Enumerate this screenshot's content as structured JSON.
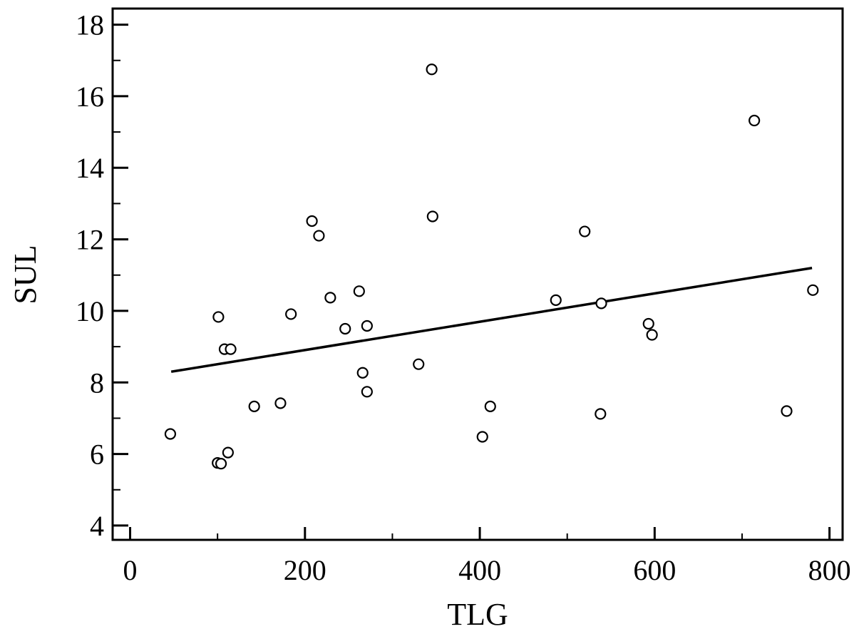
{
  "chart_data": {
    "type": "scatter",
    "xlabel": "TLG",
    "ylabel": "SUL",
    "xlim": [
      -20,
      815
    ],
    "ylim": [
      3.6,
      18.45
    ],
    "x_major_ticks": [
      0,
      200,
      400,
      600,
      800
    ],
    "x_minor_ticks": [
      100,
      300,
      500,
      700
    ],
    "y_major_ticks": [
      4,
      6,
      8,
      10,
      12,
      14,
      16,
      18
    ],
    "y_minor_ticks": [
      5,
      7,
      9,
      11,
      13,
      15,
      17
    ],
    "x_tick_labels": [
      "0",
      "200",
      "400",
      "600",
      "800"
    ],
    "y_tick_labels": [
      "4",
      "6",
      "8",
      "10",
      "12",
      "14",
      "16",
      "18"
    ],
    "grid": false,
    "legend": "none",
    "marker": "open-circle",
    "series": [
      {
        "points": [
          [
            46,
            6.56
          ],
          [
            101,
            9.83
          ],
          [
            100,
            5.75
          ],
          [
            104,
            5.73
          ],
          [
            108,
            8.93
          ],
          [
            112,
            6.04
          ],
          [
            115,
            8.93
          ],
          [
            142,
            7.33
          ],
          [
            172,
            7.42
          ],
          [
            184,
            9.91
          ],
          [
            208,
            12.51
          ],
          [
            216,
            12.1
          ],
          [
            229,
            10.37
          ],
          [
            246,
            9.5
          ],
          [
            262,
            10.55
          ],
          [
            266,
            8.27
          ],
          [
            271,
            9.58
          ],
          [
            271,
            7.74
          ],
          [
            330,
            8.51
          ],
          [
            345,
            16.75
          ],
          [
            346,
            12.64
          ],
          [
            403,
            6.48
          ],
          [
            412,
            7.33
          ],
          [
            487,
            10.3
          ],
          [
            520,
            12.22
          ],
          [
            538,
            7.12
          ],
          [
            539,
            10.21
          ],
          [
            593,
            9.64
          ],
          [
            597,
            9.33
          ],
          [
            714,
            15.32
          ],
          [
            751,
            7.2
          ],
          [
            781,
            10.58
          ]
        ]
      }
    ],
    "trendline": {
      "x": [
        47,
        780
      ],
      "y": [
        8.3,
        11.2
      ]
    },
    "colors": {
      "marker_stroke": "#000000",
      "line": "#000000",
      "axes": "#000000"
    }
  }
}
